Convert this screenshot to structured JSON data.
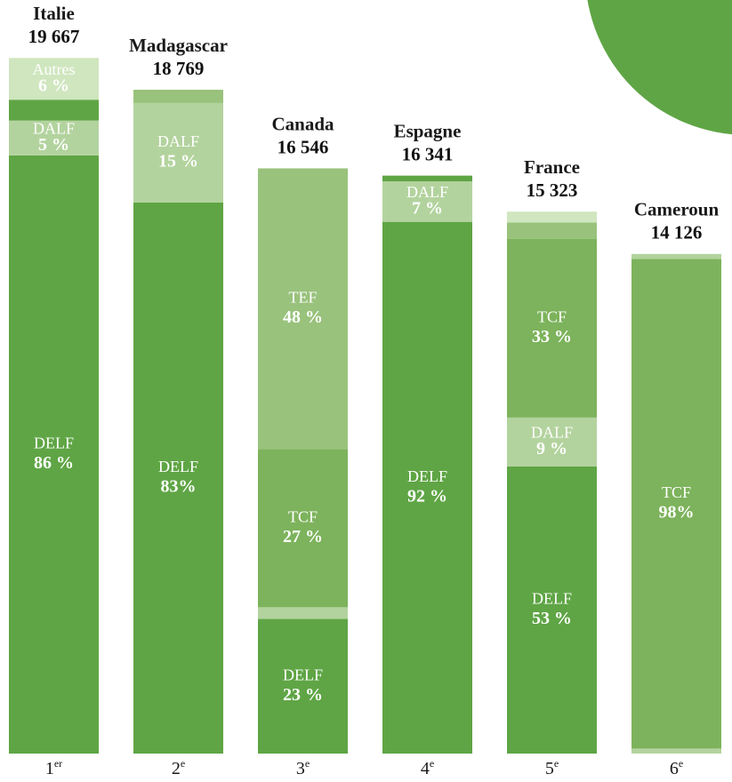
{
  "chart_data": {
    "type": "stacked-bar",
    "categories": [
      "Italie",
      "Madagascar",
      "Canada",
      "Espagne",
      "France",
      "Cameroun"
    ],
    "values": [
      19667,
      18769,
      16546,
      16341,
      15323,
      14126
    ],
    "value_labels": [
      "19 667",
      "18 769",
      "16 546",
      "16 341",
      "15 323",
      "14 126"
    ],
    "rank_numbers": [
      "1",
      "2",
      "3",
      "4",
      "5",
      "6"
    ],
    "rank_suffixes": [
      "er",
      "e",
      "e",
      "e",
      "e",
      "e"
    ],
    "segments": [
      [
        {
          "name": "DELF",
          "value": 86,
          "value_label": "86 %",
          "color": "#5fa545"
        },
        {
          "name": "DALF",
          "value": 5,
          "value_label": "5 %",
          "color": "#b3d39e"
        },
        {
          "name": null,
          "value": 3,
          "value_label": null,
          "color": "#5fa545"
        },
        {
          "name": "Autres",
          "value": 6,
          "value_label": "6 %",
          "color": "#cfe6bf"
        }
      ],
      [
        {
          "name": "DELF",
          "value": 83,
          "value_label": "83%",
          "color": "#5fa545"
        },
        {
          "name": "DALF",
          "value": 15,
          "value_label": "15 %",
          "color": "#b3d39e"
        },
        {
          "name": null,
          "value": 2,
          "value_label": null,
          "color": "#99c27c"
        }
      ],
      [
        {
          "name": "DELF",
          "value": 23,
          "value_label": "23 %",
          "color": "#5fa545"
        },
        {
          "name": null,
          "value": 2,
          "value_label": null,
          "color": "#b3d39e"
        },
        {
          "name": "TCF",
          "value": 27,
          "value_label": "27 %",
          "color": "#7db35c"
        },
        {
          "name": "TEF",
          "value": 48,
          "value_label": "48 %",
          "color": "#99c27c"
        }
      ],
      [
        {
          "name": "DELF",
          "value": 92,
          "value_label": "92 %",
          "color": "#5fa545"
        },
        {
          "name": "DALF",
          "value": 7,
          "value_label": "7 %",
          "color": "#b3d39e"
        },
        {
          "name": null,
          "value": 1,
          "value_label": null,
          "color": "#5fa545"
        }
      ],
      [
        {
          "name": "DELF",
          "value": 53,
          "value_label": "53 %",
          "color": "#5fa545"
        },
        {
          "name": "DALF",
          "value": 9,
          "value_label": "9 %",
          "color": "#b3d39e"
        },
        {
          "name": "TCF",
          "value": 33,
          "value_label": "33 %",
          "color": "#7db35c"
        },
        {
          "name": null,
          "value": 3,
          "value_label": null,
          "color": "#99c27c"
        },
        {
          "name": null,
          "value": 2,
          "value_label": null,
          "color": "#cfe6bf"
        }
      ],
      [
        {
          "name": null,
          "value": 1,
          "value_label": null,
          "color": "#b3d39e"
        },
        {
          "name": "TCF",
          "value": 98,
          "value_label": "98%",
          "color": "#7db35c"
        },
        {
          "name": null,
          "value": 1,
          "value_label": null,
          "color": "#b3d39e"
        }
      ]
    ]
  }
}
